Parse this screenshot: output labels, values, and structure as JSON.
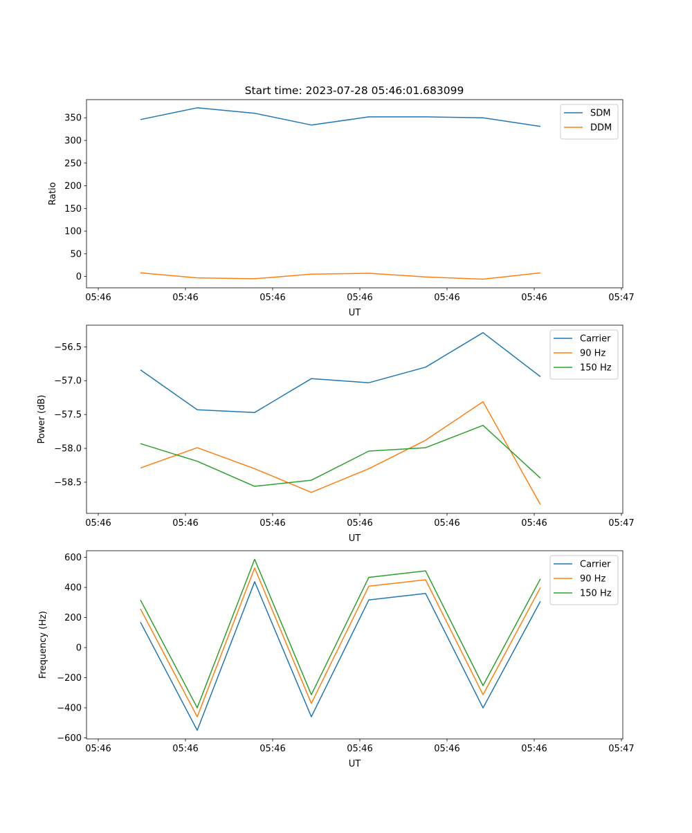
{
  "title": "Start time: 2023-07-28 05:46:01.683099",
  "colors": {
    "blue": "#1f77b4",
    "orange": "#ff7f0e",
    "green": "#2ca02c"
  },
  "chart_data": [
    {
      "type": "line",
      "title": "Start time: 2023-07-28 05:46:01.683099",
      "xlabel": "UT",
      "ylabel": "Ratio",
      "x_tick_positions": [
        0,
        1,
        2,
        3,
        4,
        5,
        6
      ],
      "x_tick_labels": [
        "05:46",
        "05:46",
        "05:46",
        "05:46",
        "05:46",
        "05:46",
        "05:47"
      ],
      "xlim": [
        -0.135,
        6.016
      ],
      "x": [
        0.484,
        1.135,
        1.794,
        2.444,
        3.103,
        3.754,
        4.413,
        5.071
      ],
      "ylim": [
        -25,
        390
      ],
      "yticks": [
        0,
        50,
        100,
        150,
        200,
        250,
        300,
        350
      ],
      "ytick_labels": [
        "0",
        "50",
        "100",
        "150",
        "200",
        "250",
        "300",
        "350"
      ],
      "legend": "top-right",
      "series": [
        {
          "name": "SDM",
          "color": "#1f77b4",
          "values": [
            346,
            372,
            360,
            334,
            352,
            352,
            350,
            331
          ]
        },
        {
          "name": "DDM",
          "color": "#ff7f0e",
          "values": [
            8,
            -3,
            -5,
            5,
            7,
            -1,
            -6,
            8
          ]
        }
      ]
    },
    {
      "type": "line",
      "title": "",
      "xlabel": "UT",
      "ylabel": "Power (dB)",
      "x_tick_positions": [
        0,
        1,
        2,
        3,
        4,
        5,
        6
      ],
      "x_tick_labels": [
        "05:46",
        "05:46",
        "05:46",
        "05:46",
        "05:46",
        "05:46",
        "05:47"
      ],
      "xlim": [
        -0.135,
        6.016
      ],
      "x": [
        0.484,
        1.135,
        1.794,
        2.444,
        3.103,
        3.754,
        4.413,
        5.071
      ],
      "ylim": [
        -58.96,
        -56.18
      ],
      "yticks": [
        -58.5,
        -58.0,
        -57.5,
        -57.0,
        -56.5
      ],
      "ytick_labels": [
        "−58.5",
        "−58.0",
        "−57.5",
        "−57.0",
        "−56.5"
      ],
      "legend": "top-right",
      "series": [
        {
          "name": "Carrier",
          "color": "#1f77b4",
          "values": [
            -56.84,
            -57.43,
            -57.47,
            -56.97,
            -57.03,
            -56.8,
            -56.29,
            -56.94
          ]
        },
        {
          "name": "90 Hz",
          "color": "#ff7f0e",
          "values": [
            -58.29,
            -57.99,
            -58.3,
            -58.65,
            -58.3,
            -57.88,
            -57.31,
            -58.83
          ]
        },
        {
          "name": "150 Hz",
          "color": "#2ca02c",
          "values": [
            -57.93,
            -58.19,
            -58.56,
            -58.47,
            -58.04,
            -57.99,
            -57.66,
            -58.44
          ]
        }
      ]
    },
    {
      "type": "line",
      "title": "",
      "xlabel": "UT",
      "ylabel": "Frequency (Hz)",
      "x_tick_positions": [
        0,
        1,
        2,
        3,
        4,
        5,
        6
      ],
      "x_tick_labels": [
        "05:46",
        "05:46",
        "05:46",
        "05:46",
        "05:46",
        "05:46",
        "05:47"
      ],
      "xlim": [
        -0.135,
        6.016
      ],
      "x": [
        0.484,
        1.135,
        1.794,
        2.444,
        3.103,
        3.754,
        4.413,
        5.071
      ],
      "ylim": [
        -607,
        644
      ],
      "yticks": [
        -600,
        -400,
        -200,
        0,
        200,
        400,
        600
      ],
      "ytick_labels": [
        "−600",
        "−400",
        "−200",
        "0",
        "200",
        "400",
        "600"
      ],
      "legend": "top-right",
      "series": [
        {
          "name": "Carrier",
          "color": "#1f77b4",
          "values": [
            169,
            -550,
            438,
            -460,
            317,
            360,
            -401,
            308
          ]
        },
        {
          "name": "90 Hz",
          "color": "#ff7f0e",
          "values": [
            257,
            -460,
            529,
            -371,
            408,
            451,
            -313,
            399
          ]
        },
        {
          "name": "150 Hz",
          "color": "#2ca02c",
          "values": [
            316,
            -400,
            587,
            -313,
            467,
            510,
            -253,
            457
          ]
        }
      ]
    }
  ]
}
